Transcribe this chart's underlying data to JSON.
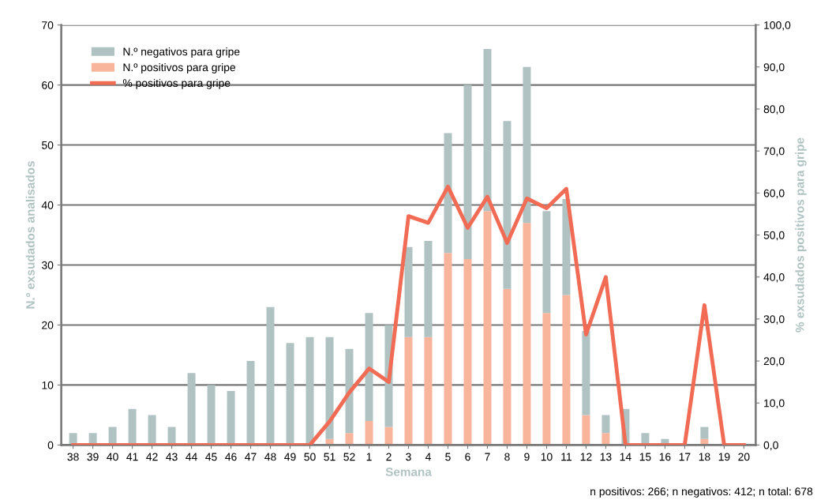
{
  "chart_data": {
    "type": "bar",
    "stacked": true,
    "xlabel": "Semana",
    "ylabel": "N.º exsudados analisados",
    "y2label": "% exsudados positivos para gripe",
    "categories": [
      "38",
      "39",
      "40",
      "41",
      "42",
      "43",
      "44",
      "45",
      "46",
      "47",
      "48",
      "49",
      "50",
      "51",
      "52",
      "1",
      "2",
      "3",
      "4",
      "5",
      "6",
      "7",
      "8",
      "9",
      "10",
      "11",
      "12",
      "13",
      "14",
      "15",
      "16",
      "17",
      "18",
      "19",
      "20"
    ],
    "series": [
      {
        "name": "N.º positivos para gripe",
        "color": "#f9b49c",
        "values": [
          0,
          0,
          0,
          0,
          0,
          0,
          0,
          0,
          0,
          0,
          0,
          0,
          0,
          1,
          2,
          4,
          3,
          18,
          18,
          32,
          31,
          39,
          26,
          37,
          22,
          25,
          5,
          2,
          0,
          0,
          0,
          0,
          1,
          0,
          0
        ]
      },
      {
        "name": "N.º negativos para gripe",
        "color": "#b0c3c2",
        "values": [
          2,
          2,
          3,
          6,
          5,
          3,
          12,
          10,
          9,
          14,
          23,
          17,
          18,
          17,
          14,
          18,
          17,
          15,
          16,
          20,
          29,
          27,
          28,
          26,
          17,
          16,
          14,
          3,
          6,
          2,
          1,
          0,
          2,
          0,
          0
        ]
      },
      {
        "name": "% positivos para gripe",
        "type": "line",
        "axis": "y2",
        "color": "#f26b55",
        "values": [
          0,
          0,
          0,
          0,
          0,
          0,
          0,
          0,
          0,
          0,
          0,
          0,
          0,
          5.6,
          12.5,
          18.2,
          15.0,
          54.5,
          52.9,
          61.5,
          51.7,
          59.1,
          48.1,
          58.7,
          56.4,
          61.0,
          26.3,
          40.0,
          0,
          0,
          0,
          0,
          33.3,
          0,
          0
        ]
      }
    ],
    "ylim": [
      0,
      70
    ],
    "yticks": [
      0,
      10,
      20,
      30,
      40,
      50,
      60,
      70
    ],
    "y2lim": [
      0,
      100
    ],
    "y2ticks": [
      {
        "value": 0,
        "label": "0,0"
      },
      {
        "value": 10,
        "label": "10,0"
      },
      {
        "value": 20,
        "label": "20,0"
      },
      {
        "value": 30,
        "label": "30,0"
      },
      {
        "value": 40,
        "label": "40,0"
      },
      {
        "value": 50,
        "label": "50,0"
      },
      {
        "value": 60,
        "label": "60,0"
      },
      {
        "value": 70,
        "label": "70,0"
      },
      {
        "value": 80,
        "label": "80,0"
      },
      {
        "value": 90,
        "label": "90,0"
      },
      {
        "value": 100,
        "label": "100,0"
      }
    ],
    "grid": "y",
    "legend": "top left",
    "annotations": [
      "n positivos: 266; n negativos: 412; n total: 678"
    ]
  }
}
